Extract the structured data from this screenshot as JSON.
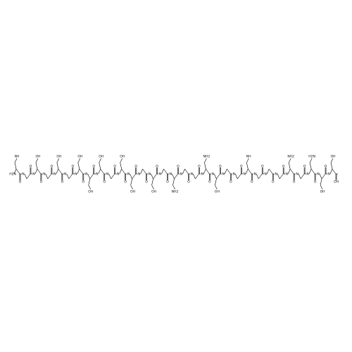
{
  "molecule": {
    "residues": [
      {
        "n": "H2N",
        "o": "O",
        "side": "NH"
      },
      {
        "n": "N",
        "o": "O"
      },
      {
        "n": "N",
        "o": "O",
        "side": "OH"
      },
      {
        "n": "N",
        "o": "O"
      },
      {
        "n": "N",
        "o": "O",
        "side": "OH"
      },
      {
        "n": "N",
        "o": "O"
      },
      {
        "n": "N",
        "o": "O",
        "side": "OH"
      },
      {
        "n": "N",
        "o": "O",
        "side": "OH"
      },
      {
        "n": "N",
        "o": "O",
        "side": "OH"
      },
      {
        "n": "N",
        "o": "O"
      },
      {
        "n": "N",
        "o": "O",
        "side": "OH"
      },
      {
        "n": "N",
        "o": "O",
        "side": "OH"
      },
      {
        "n": "N",
        "o": "O"
      },
      {
        "n": "N",
        "o": "O",
        "side": "OH"
      },
      {
        "n": "N",
        "o": "O"
      },
      {
        "n": "N",
        "o": "O",
        "side": "NH2"
      },
      {
        "n": "N",
        "o": "O"
      },
      {
        "n": "N",
        "o": "O"
      },
      {
        "n": "N",
        "o": "O",
        "side": "NH2"
      },
      {
        "n": "N",
        "o": "O",
        "side": "OH"
      },
      {
        "n": "N",
        "o": "O"
      },
      {
        "n": "N",
        "o": "O"
      },
      {
        "n": "N",
        "o": "O",
        "side": "NH"
      },
      {
        "n": "N",
        "o": "O"
      },
      {
        "n": "N",
        "o": "O"
      },
      {
        "n": "N",
        "o": "O"
      },
      {
        "n": "N",
        "o": "O",
        "side": "NH2"
      },
      {
        "n": "N",
        "o": "O"
      },
      {
        "n": "N",
        "o": "O",
        "side": "H2N"
      },
      {
        "n": "N",
        "o": "O",
        "side": "OH"
      },
      {
        "n": "N",
        "o": "OH",
        "side": "OH"
      }
    ]
  }
}
